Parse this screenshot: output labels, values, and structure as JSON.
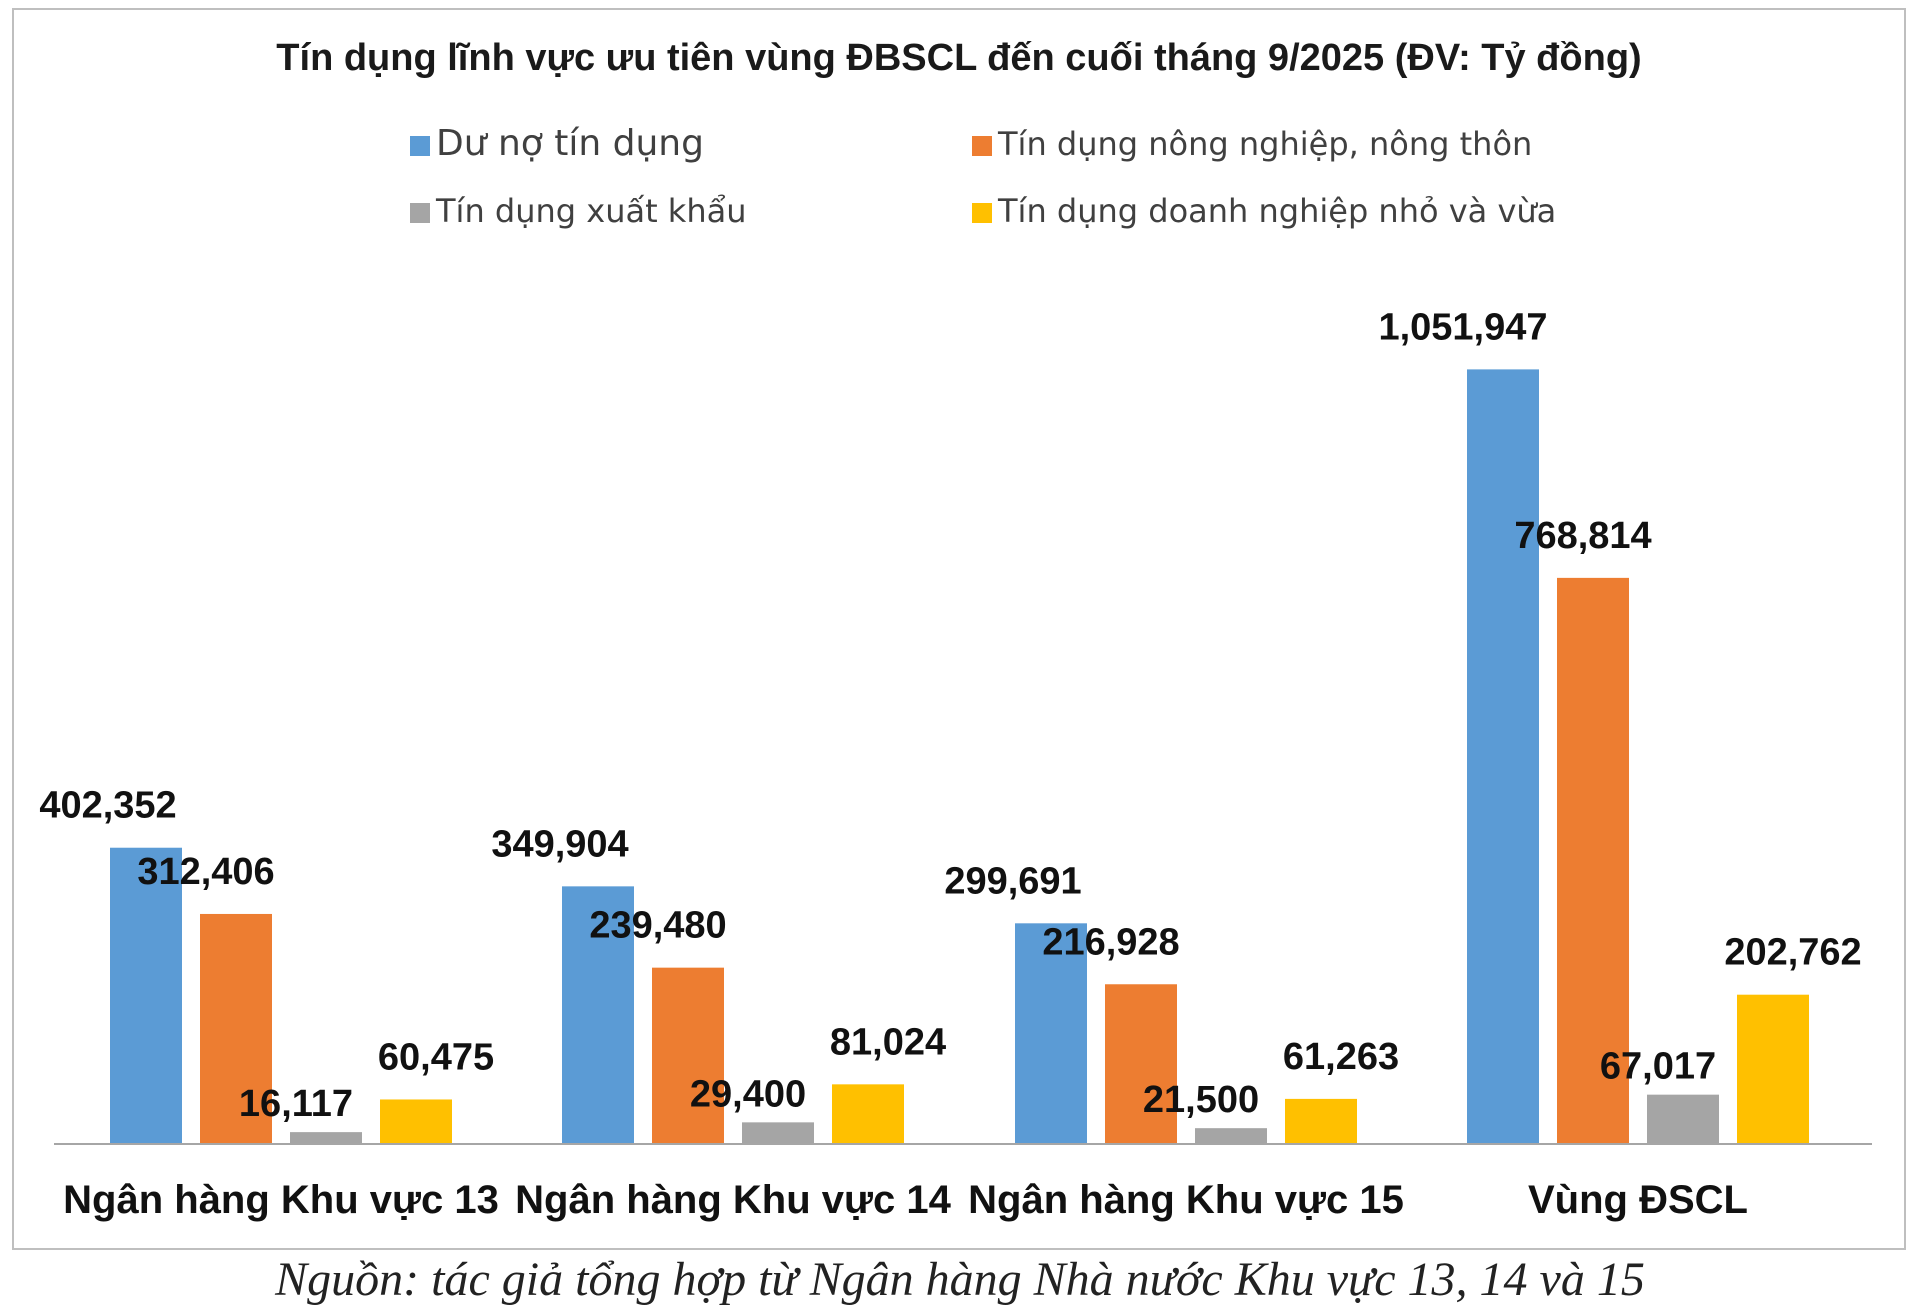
{
  "chart_data": {
    "type": "bar",
    "title": "Tín dụng lĩnh vực ưu tiên vùng ĐBSCL đến cuối tháng 9/2025 (ĐV: Tỷ đồng)",
    "categories": [
      "Ngân hàng Khu vực 13",
      "Ngân hàng Khu vực 14",
      "Ngân hàng Khu vực 15",
      "Vùng ĐSCL"
    ],
    "series": [
      {
        "name": "Dư nợ tín dụng",
        "color": "#5b9bd5",
        "values": [
          402352,
          349904,
          299691,
          1051947
        ],
        "labels": [
          "402,352",
          "349,904",
          "299,691",
          "1,051,947"
        ]
      },
      {
        "name": "Tín dụng nông nghiệp, nông thôn",
        "color": "#ed7d31",
        "values": [
          312406,
          239480,
          216928,
          768814
        ],
        "labels": [
          "312,406",
          "239,480",
          "216,928",
          "768,814"
        ]
      },
      {
        "name": "Tín dụng xuất khẩu",
        "color": "#a5a5a5",
        "values": [
          16117,
          29400,
          21500,
          67017
        ],
        "labels": [
          "16,117",
          "29,400",
          "21,500",
          "67,017"
        ]
      },
      {
        "name": "Tín dụng doanh nghiệp nhỏ và vừa",
        "color": "#ffc000",
        "values": [
          60475,
          81024,
          61263,
          202762
        ],
        "labels": [
          "60,475",
          "81,024",
          "61,263",
          "202,762"
        ]
      }
    ],
    "xlabel": "",
    "ylabel": "",
    "ylim": [
      0,
      1100000
    ],
    "grid": false,
    "legend": "top"
  },
  "source_note": "Nguồn: tác giả tổng hợp từ Ngân hàng Nhà nước Khu vực 13, 14 và 15"
}
